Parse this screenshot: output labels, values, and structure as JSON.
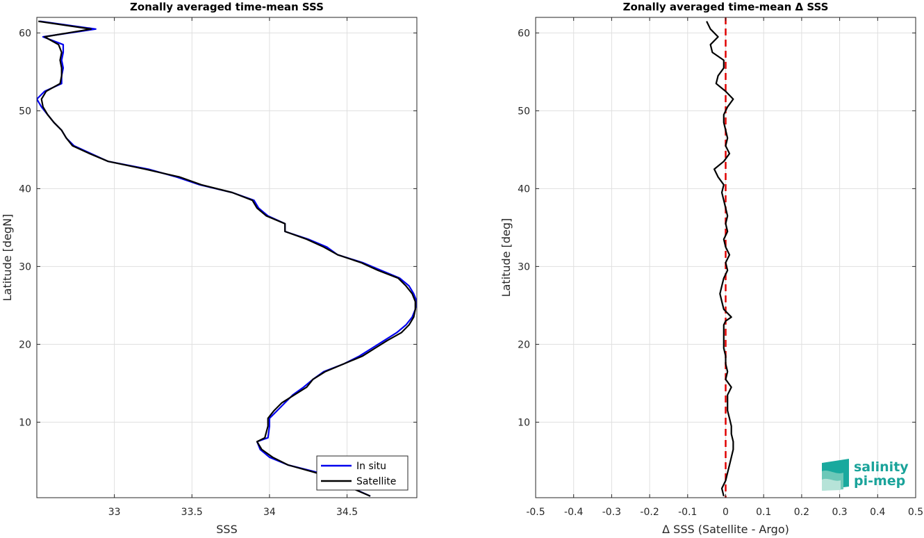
{
  "chart_data": [
    {
      "type": "line",
      "title": "Zonally averaged time-mean SSS",
      "xlabel": "SSS",
      "ylabel": "Latitude [degN]",
      "xlim": [
        32.5,
        34.95
      ],
      "ylim": [
        0.3,
        62
      ],
      "xticks": [
        33,
        33.5,
        34,
        34.5
      ],
      "xtick_labels": [
        "33",
        "33.5",
        "34",
        "34.5"
      ],
      "yticks": [
        10,
        20,
        30,
        40,
        50,
        60
      ],
      "ytick_labels": [
        "10",
        "20",
        "30",
        "40",
        "50",
        "60"
      ],
      "grid": true,
      "legend": "bottom-right",
      "series": [
        {
          "name": "In situ",
          "color": "#0000ee",
          "lat": [
            0.5,
            3.5,
            4.5,
            5.5,
            6.5,
            7.5,
            8.0,
            9.5,
            10.5,
            11.5,
            12.5,
            13.5,
            14.5,
            15.5,
            16.5,
            17.5,
            18.5,
            19.5,
            20.5,
            21.5,
            22.5,
            23.5,
            24.5,
            25.5,
            26.5,
            27.5,
            28.5,
            29.5,
            30.5,
            31.5,
            32.5,
            33.5,
            34.5,
            35.5,
            36.5,
            37.5,
            38.5,
            39.5,
            40.5,
            41.5,
            42.5,
            43.5,
            44.5,
            45.5,
            46.5,
            47.5,
            48.5,
            49.5,
            50.5,
            51.5,
            52.5,
            53.5,
            54.5,
            55.5,
            56.5,
            57.5,
            58.5,
            59.5,
            60.5,
            61.5
          ],
          "sss": [
            34.65,
            34.32,
            34.12,
            34.0,
            33.94,
            33.92,
            33.99,
            34.0,
            34.0,
            34.05,
            34.1,
            34.15,
            34.22,
            34.28,
            34.35,
            34.48,
            34.58,
            34.66,
            34.74,
            34.82,
            34.88,
            34.92,
            34.94,
            34.95,
            34.93,
            34.9,
            34.84,
            34.72,
            34.6,
            34.44,
            34.37,
            34.25,
            34.1,
            34.1,
            33.99,
            33.93,
            33.9,
            33.76,
            33.55,
            33.4,
            33.22,
            32.96,
            32.85,
            32.74,
            32.69,
            32.66,
            32.61,
            32.57,
            32.53,
            32.5,
            32.55,
            32.66,
            32.66,
            32.67,
            32.66,
            32.67,
            32.67,
            32.54,
            32.88,
            32.52
          ]
        },
        {
          "name": "Satellite",
          "color": "#000000",
          "lat": [
            0.5,
            3.5,
            4.5,
            5.5,
            6.5,
            7.5,
            8.0,
            9.5,
            10.5,
            11.5,
            12.5,
            13.5,
            14.5,
            15.5,
            16.5,
            17.5,
            18.5,
            19.5,
            20.5,
            21.5,
            22.5,
            23.5,
            24.5,
            25.5,
            26.5,
            27.5,
            28.5,
            29.5,
            30.5,
            31.5,
            32.5,
            33.5,
            34.5,
            35.5,
            36.5,
            37.5,
            38.5,
            39.5,
            40.5,
            41.5,
            42.5,
            43.5,
            44.5,
            45.5,
            46.5,
            47.5,
            48.5,
            49.5,
            50.5,
            51.5,
            52.5,
            53.5,
            54.5,
            55.5,
            56.5,
            57.5,
            58.5,
            59.5,
            60.5,
            61.5
          ],
          "sss": [
            34.65,
            34.3,
            34.12,
            34.02,
            33.95,
            33.92,
            33.97,
            33.99,
            33.99,
            34.03,
            34.08,
            34.16,
            34.24,
            34.28,
            34.36,
            34.48,
            34.6,
            34.68,
            34.76,
            34.85,
            34.9,
            34.93,
            34.94,
            34.94,
            34.92,
            34.88,
            34.83,
            34.7,
            34.59,
            34.44,
            34.35,
            34.24,
            34.1,
            34.1,
            33.98,
            33.92,
            33.89,
            33.76,
            33.56,
            33.42,
            33.2,
            32.96,
            32.84,
            32.73,
            32.69,
            32.66,
            32.61,
            32.57,
            32.54,
            32.53,
            32.56,
            32.65,
            32.66,
            32.66,
            32.65,
            32.66,
            32.64,
            32.55,
            32.85,
            32.51
          ]
        }
      ]
    },
    {
      "type": "line",
      "title": "Zonally averaged time-mean Δ SSS",
      "xlabel": "Δ SSS (Satellite - Argo)",
      "ylabel": "Latitude [deg]",
      "xlim": [
        -0.5,
        0.5
      ],
      "ylim": [
        0.3,
        62
      ],
      "xticks": [
        -0.5,
        -0.4,
        -0.3,
        -0.2,
        -0.1,
        0,
        0.1,
        0.2,
        0.3,
        0.4,
        0.5
      ],
      "xtick_labels": [
        "-0.5",
        "-0.4",
        "-0.3",
        "-0.2",
        "-0.1",
        "0",
        "0.1",
        "0.2",
        "0.3",
        "0.4",
        "0.5"
      ],
      "yticks": [
        10,
        20,
        30,
        40,
        50,
        60
      ],
      "ytick_labels": [
        "10",
        "20",
        "30",
        "40",
        "50",
        "60"
      ],
      "grid": true,
      "zero_line": {
        "x": 0,
        "color": "#e00000",
        "style": "dashed"
      },
      "series": [
        {
          "color": "#000000",
          "lat": [
            0.5,
            1.5,
            2.5,
            3.5,
            4.5,
            5.5,
            6.5,
            7.5,
            8.5,
            9.5,
            10.5,
            11.5,
            12.5,
            13.5,
            14.5,
            15.5,
            16.5,
            17.5,
            18.5,
            19.5,
            20.5,
            21.5,
            22.5,
            23.0,
            23.5,
            24.5,
            25.5,
            26.5,
            27.5,
            28.5,
            29.5,
            30.5,
            31.5,
            32.5,
            33.5,
            34.5,
            35.5,
            36.5,
            37.5,
            38.5,
            39.5,
            40.5,
            41.5,
            42.5,
            43.5,
            44.5,
            45.5,
            46.5,
            47.5,
            48.5,
            49.5,
            50.5,
            51.5,
            52.5,
            53.5,
            54.5,
            55.5,
            56.5,
            57.5,
            58.5,
            59.5,
            60.5,
            61.5
          ],
          "delta": [
            -0.005,
            -0.01,
            0.0,
            0.005,
            0.01,
            0.015,
            0.02,
            0.02,
            0.015,
            0.015,
            0.01,
            0.005,
            0.005,
            0.005,
            0.015,
            0.0,
            0.005,
            0.0,
            0.0,
            -0.005,
            -0.005,
            -0.005,
            -0.005,
            0.0,
            0.015,
            -0.005,
            -0.01,
            -0.015,
            -0.01,
            -0.005,
            0.005,
            0.0,
            0.01,
            0.0,
            -0.005,
            0.005,
            0.0,
            0.005,
            0.0,
            -0.005,
            -0.01,
            -0.005,
            -0.02,
            -0.03,
            -0.005,
            0.01,
            0.0,
            0.005,
            0.0,
            -0.005,
            -0.005,
            0.005,
            0.02,
            0.0,
            -0.025,
            -0.02,
            -0.005,
            -0.005,
            -0.035,
            -0.04,
            -0.02,
            -0.04,
            -0.05
          ]
        }
      ]
    }
  ],
  "legend": {
    "items": [
      "In situ",
      "Satellite"
    ]
  },
  "logo": {
    "line1": "salinity",
    "line2": "pi-mep",
    "color": "#1aa39a"
  }
}
